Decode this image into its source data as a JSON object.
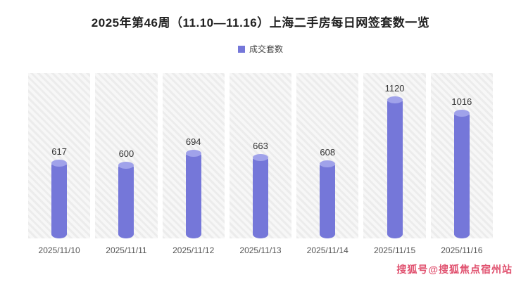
{
  "title": "2025年第46周（11.10—11.16）上海二手房每日网签套数一览",
  "legend": {
    "label": "成交套数"
  },
  "watermark": "搜狐号@搜狐焦点宿州站",
  "colors": {
    "bar": "#7577d9",
    "bar_top": "#a0a2ea",
    "hatch": "#ececec",
    "value_label": "#333333",
    "watermark": "#e0506e"
  },
  "chart_data": {
    "type": "bar",
    "title": "2025年第46周（11.10—11.16）上海二手房每日网签套数一览",
    "series_name": "成交套数",
    "categories": [
      "2025/11/10",
      "2025/11/11",
      "2025/11/12",
      "2025/11/13",
      "2025/11/14",
      "2025/11/15",
      "2025/11/16"
    ],
    "values": [
      617,
      600,
      694,
      663,
      608,
      1120,
      1016
    ],
    "xlabel": "",
    "ylabel": "成交套数",
    "ylim": [
      0,
      1200
    ],
    "grid": false,
    "legend_position": "top"
  }
}
